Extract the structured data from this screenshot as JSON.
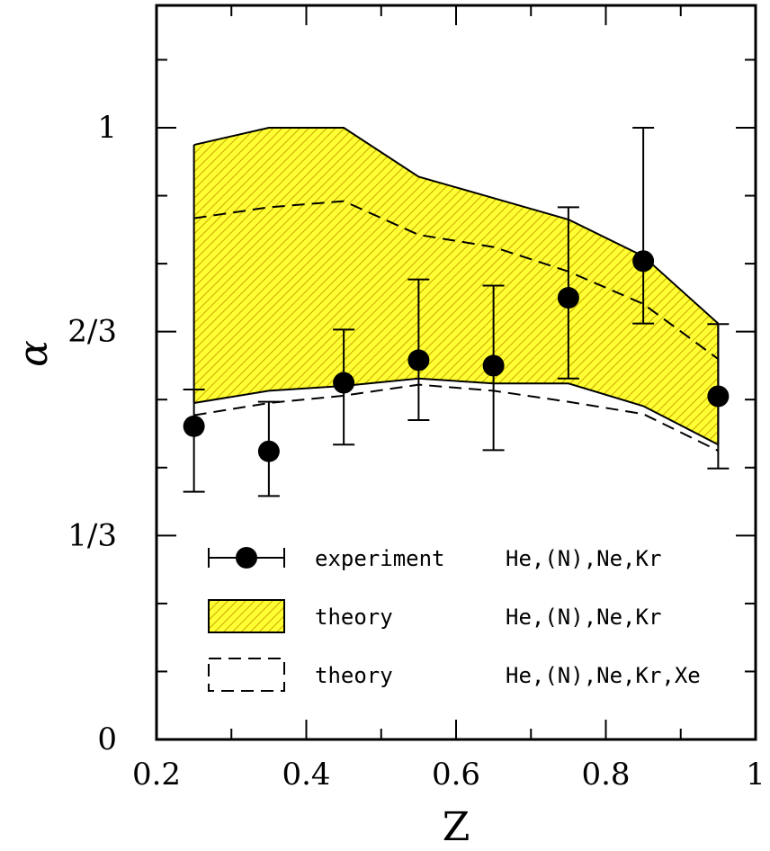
{
  "chart_data": {
    "type": "scatter",
    "xlabel": "Z",
    "ylabel": "α",
    "xlim": [
      0.2,
      1.0
    ],
    "ylim": [
      0,
      1.2
    ],
    "grid": false,
    "legend_position": "lower-center",
    "x_ticks": [
      {
        "value": 0.2,
        "label": "0.2"
      },
      {
        "value": 0.4,
        "label": "0.4"
      },
      {
        "value": 0.6,
        "label": "0.6"
      },
      {
        "value": 0.8,
        "label": "0.8"
      },
      {
        "value": 1.0,
        "label": "1"
      }
    ],
    "x_minor_ticks": [
      0.3,
      0.5,
      0.7,
      0.9
    ],
    "y_ticks": [
      {
        "value": 0,
        "label": "0"
      },
      {
        "value": 0.3333,
        "label": "1/3"
      },
      {
        "value": 0.6667,
        "label": "2/3"
      },
      {
        "value": 1.0,
        "label": "1"
      }
    ],
    "y_minor_ticks": [
      0.1111,
      0.2222,
      0.4444,
      0.5556,
      0.7778,
      0.8889,
      1.1111
    ],
    "experiment": {
      "legend_label": "experiment",
      "legend_set": "He,(N),Ne,Kr",
      "points": [
        {
          "x": 0.25,
          "y": 0.512,
          "err_low": 0.405,
          "err_high": 0.572
        },
        {
          "x": 0.35,
          "y": 0.471,
          "err_low": 0.398,
          "err_high": 0.552
        },
        {
          "x": 0.45,
          "y": 0.583,
          "err_low": 0.482,
          "err_high": 0.67
        },
        {
          "x": 0.55,
          "y": 0.62,
          "err_low": 0.522,
          "err_high": 0.752
        },
        {
          "x": 0.65,
          "y": 0.611,
          "err_low": 0.473,
          "err_high": 0.742
        },
        {
          "x": 0.75,
          "y": 0.722,
          "err_low": 0.59,
          "err_high": 0.87
        },
        {
          "x": 0.85,
          "y": 0.782,
          "err_low": 0.68,
          "err_high": 1.0
        },
        {
          "x": 0.95,
          "y": 0.561,
          "err_low": 0.443,
          "err_high": 0.679
        }
      ]
    },
    "theory_band": {
      "legend_label": "theory",
      "legend_set": "He,(N),Ne,Kr",
      "fill_color": "#ffff33",
      "hatch_color": "#c8a800",
      "x": [
        0.25,
        0.35,
        0.45,
        0.55,
        0.65,
        0.75,
        0.85,
        0.95
      ],
      "upper": [
        0.972,
        1.0,
        1.0,
        0.92,
        0.885,
        0.85,
        0.79,
        0.68
      ],
      "lower": [
        0.55,
        0.57,
        0.578,
        0.59,
        0.582,
        0.582,
        0.545,
        0.482
      ]
    },
    "theory_dashed": {
      "legend_label": "theory",
      "legend_set": "He,(N),Ne,Kr,Xe",
      "x": [
        0.25,
        0.35,
        0.45,
        0.55,
        0.65,
        0.75,
        0.85,
        0.95
      ],
      "upper": [
        0.852,
        0.87,
        0.88,
        0.825,
        0.805,
        0.765,
        0.712,
        0.622
      ],
      "lower": [
        0.53,
        0.55,
        0.562,
        0.58,
        0.57,
        0.552,
        0.532,
        0.472
      ]
    }
  }
}
